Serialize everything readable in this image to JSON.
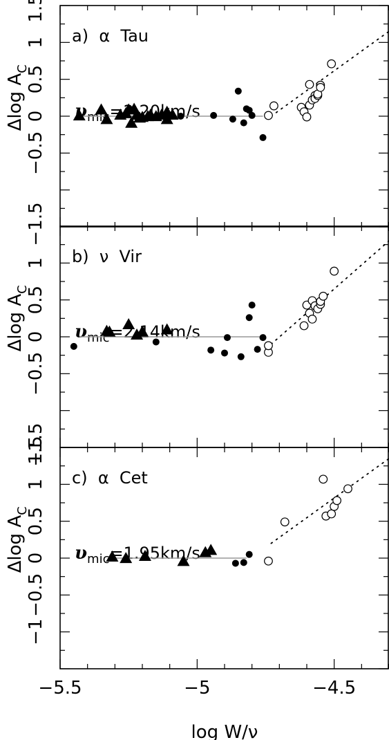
{
  "chart_data": [
    {
      "type": "scatter",
      "panel_label": "a)  α  Tau",
      "vmic_symbol": "υ",
      "vmic_sub": "mic",
      "vmic_value": "=2.20km/s",
      "ylabel_main": "Δlog A",
      "ylabel_sub": "C",
      "xlim": [
        -5.5,
        -4.3
      ],
      "ylim": [
        -1.5,
        1.5
      ],
      "y_ticks": [
        "1.5",
        "1",
        "0.5",
        "0",
        "−0.5",
        "−1.5"
      ],
      "fit_line": {
        "x": [
          -5.43,
          -4.76
        ],
        "y": [
          0,
          0
        ]
      },
      "trend_line": {
        "x": [
          -4.73,
          -4.3
        ],
        "y": [
          0,
          1.15
        ]
      },
      "series": [
        {
          "marker": "filled-triangle",
          "points": [
            [
              -5.43,
              0.0
            ],
            [
              -5.35,
              0.08
            ],
            [
              -5.33,
              -0.05
            ],
            [
              -5.28,
              0.01
            ],
            [
              -5.26,
              0.03
            ],
            [
              -5.25,
              0.08
            ],
            [
              -5.24,
              -0.1
            ],
            [
              -5.23,
              0.09
            ],
            [
              -5.22,
              0.01
            ],
            [
              -5.21,
              -0.03
            ],
            [
              -5.2,
              -0.02
            ],
            [
              -5.18,
              -0.01
            ],
            [
              -5.17,
              0.01
            ],
            [
              -5.15,
              -0.01
            ],
            [
              -5.13,
              0.01
            ],
            [
              -5.11,
              0.05
            ],
            [
              -5.11,
              -0.05
            ],
            [
              -5.09,
              0.01
            ]
          ]
        },
        {
          "marker": "filled-circle",
          "points": [
            [
              -5.06,
              0.0
            ],
            [
              -4.94,
              0.01
            ],
            [
              -4.87,
              -0.04
            ],
            [
              -4.85,
              0.34
            ],
            [
              -4.83,
              -0.09
            ],
            [
              -4.82,
              0.1
            ],
            [
              -4.81,
              0.08
            ],
            [
              -4.8,
              0.01
            ],
            [
              -4.76,
              -0.29
            ]
          ]
        },
        {
          "marker": "open-circle",
          "points": [
            [
              -4.74,
              0.01
            ],
            [
              -4.72,
              0.14
            ],
            [
              -4.62,
              0.12
            ],
            [
              -4.61,
              0.06
            ],
            [
              -4.6,
              -0.01
            ],
            [
              -4.59,
              0.43
            ],
            [
              -4.59,
              0.15
            ],
            [
              -4.58,
              0.22
            ],
            [
              -4.57,
              0.28
            ],
            [
              -4.57,
              0.24
            ],
            [
              -4.56,
              0.28
            ],
            [
              -4.56,
              0.3
            ],
            [
              -4.55,
              0.42
            ],
            [
              -4.55,
              0.39
            ],
            [
              -4.51,
              0.71
            ]
          ]
        }
      ]
    },
    {
      "type": "scatter",
      "panel_label": "b)  ν  Vir",
      "vmic_symbol": "υ",
      "vmic_sub": "mic",
      "vmic_value": "=2.14km/s",
      "ylabel_main": "Δlog A",
      "ylabel_sub": "C",
      "xlim": [
        -5.5,
        -4.3
      ],
      "ylim": [
        -1.5,
        1.5
      ],
      "y_ticks": [
        "1",
        "0.5",
        "0",
        "−0.5",
        "−1.5"
      ],
      "fit_line": {
        "x": [
          -5.43,
          -4.76
        ],
        "y": [
          0,
          0
        ]
      },
      "trend_line": {
        "x": [
          -4.73,
          -4.3
        ],
        "y": [
          -0.1,
          1.3
        ]
      },
      "series": [
        {
          "marker": "filled-triangle",
          "points": [
            [
              -5.33,
              0.07
            ],
            [
              -5.32,
              0.06
            ],
            [
              -5.25,
              0.16
            ],
            [
              -5.22,
              0.02
            ],
            [
              -5.2,
              0.06
            ],
            [
              -5.11,
              0.09
            ]
          ]
        },
        {
          "marker": "filled-circle",
          "points": [
            [
              -5.45,
              -0.13
            ],
            [
              -5.15,
              -0.07
            ],
            [
              -4.95,
              -0.18
            ],
            [
              -4.9,
              -0.22
            ],
            [
              -4.89,
              -0.01
            ],
            [
              -4.84,
              -0.27
            ],
            [
              -4.81,
              0.26
            ],
            [
              -4.8,
              0.43
            ],
            [
              -4.78,
              -0.17
            ],
            [
              -4.76,
              -0.01
            ]
          ]
        },
        {
          "marker": "open-circle",
          "points": [
            [
              -4.74,
              -0.21
            ],
            [
              -4.74,
              -0.12
            ],
            [
              -4.61,
              0.15
            ],
            [
              -4.6,
              0.43
            ],
            [
              -4.59,
              0.32
            ],
            [
              -4.58,
              0.24
            ],
            [
              -4.58,
              0.49
            ],
            [
              -4.57,
              0.42
            ],
            [
              -4.56,
              0.38
            ],
            [
              -4.55,
              0.44
            ],
            [
              -4.55,
              0.48
            ],
            [
              -4.54,
              0.55
            ],
            [
              -4.5,
              0.89
            ]
          ]
        }
      ]
    },
    {
      "type": "scatter",
      "panel_label": "c)  α  Cet",
      "vmic_symbol": "υ",
      "vmic_sub": "mic",
      "vmic_value": "=1.95km/s",
      "ylabel_main": "Δlog A",
      "ylabel_sub": "C",
      "xlim": [
        -5.5,
        -4.3
      ],
      "ylim": [
        -1.5,
        1.5
      ],
      "y_ticks": [
        "1.5",
        "1",
        "0.5",
        "0",
        "−0.5",
        "−1"
      ],
      "x_ticks": [
        "−5.5",
        "−5",
        "−4.5"
      ],
      "xlabel": "log W/ν",
      "fit_line": {
        "x": [
          -5.31,
          -4.82
        ],
        "y": [
          0,
          0
        ]
      },
      "trend_line": {
        "x": [
          -4.73,
          -4.3
        ],
        "y": [
          0.2,
          1.35
        ]
      },
      "series": [
        {
          "marker": "filled-triangle",
          "points": [
            [
              -5.31,
              0.01
            ],
            [
              -5.26,
              -0.01
            ],
            [
              -5.19,
              0.02
            ],
            [
              -5.05,
              -0.05
            ],
            [
              -4.97,
              0.07
            ],
            [
              -4.95,
              0.1
            ]
          ]
        },
        {
          "marker": "filled-circle",
          "points": [
            [
              -4.86,
              -0.07
            ],
            [
              -4.83,
              -0.06
            ],
            [
              -4.81,
              0.05
            ]
          ]
        },
        {
          "marker": "open-circle",
          "points": [
            [
              -4.74,
              -0.04
            ],
            [
              -4.68,
              0.49
            ],
            [
              -4.54,
              1.07
            ],
            [
              -4.53,
              0.57
            ],
            [
              -4.51,
              0.6
            ],
            [
              -4.5,
              0.7
            ],
            [
              -4.49,
              0.78
            ],
            [
              -4.45,
              0.94
            ]
          ]
        }
      ]
    }
  ]
}
